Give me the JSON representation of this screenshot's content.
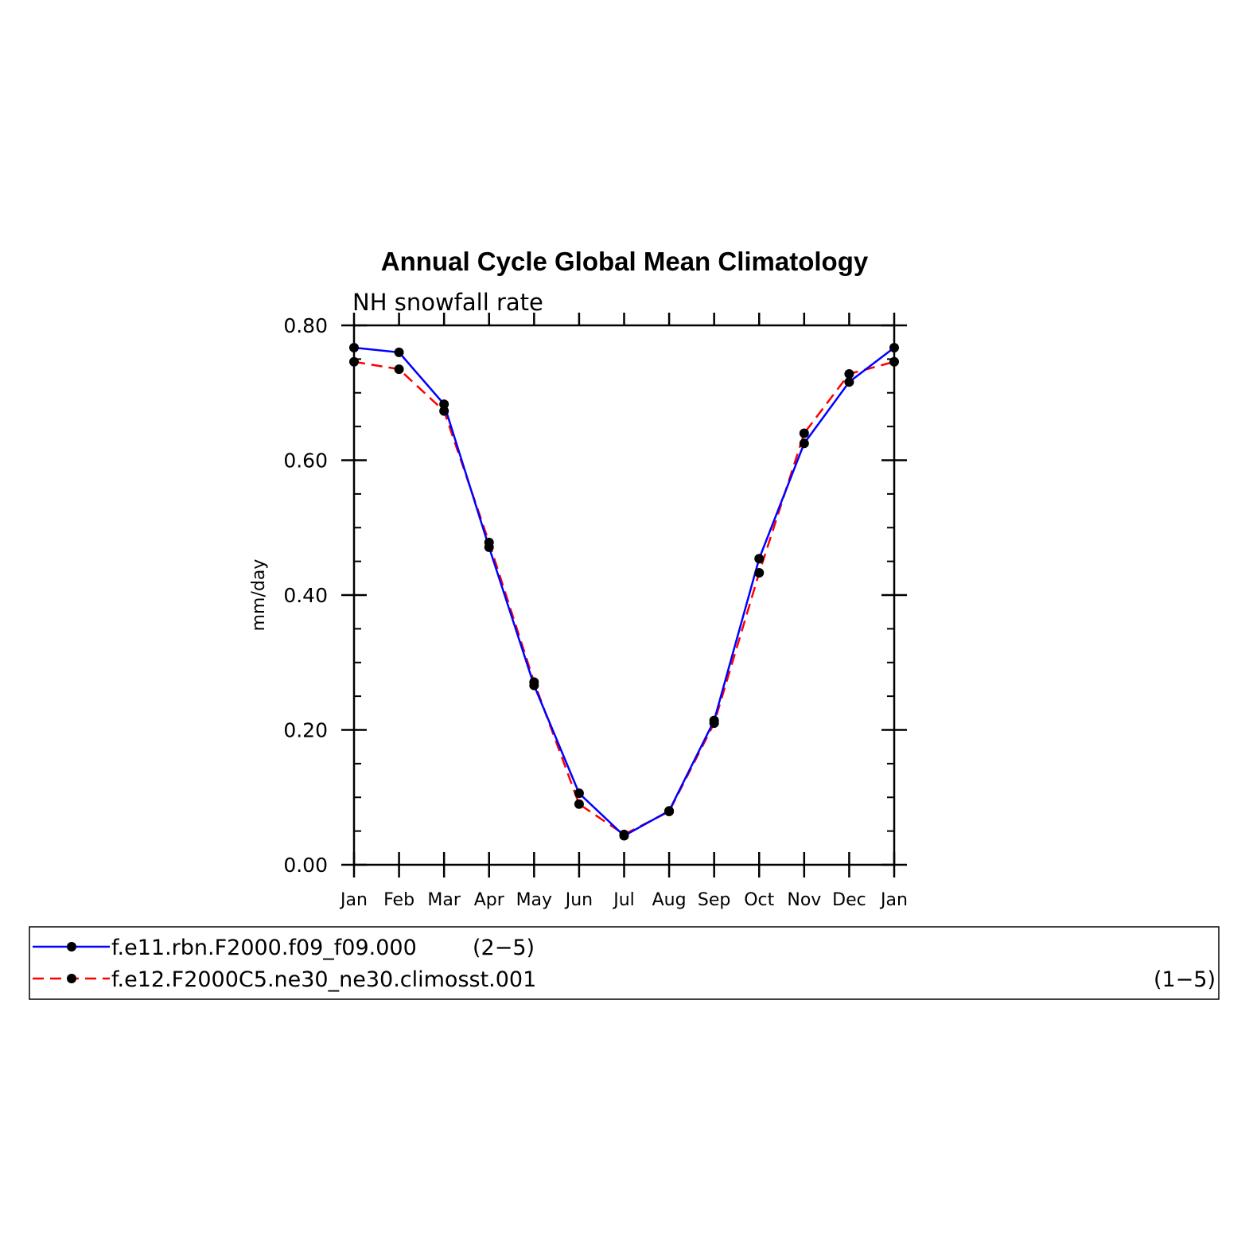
{
  "chart_data": {
    "type": "line",
    "title": "Annual Cycle Global Mean Climatology",
    "subtitle": "NH snowfall rate",
    "ylabel": "mm/day",
    "xlabel": "",
    "ylim": [
      0,
      0.8
    ],
    "yticks": [
      "0.00",
      "0.20",
      "0.40",
      "0.60",
      "0.80"
    ],
    "categories": [
      "Jan",
      "Feb",
      "Mar",
      "Apr",
      "May",
      "Jun",
      "Jul",
      "Aug",
      "Sep",
      "Oct",
      "Nov",
      "Dec",
      "Jan"
    ],
    "series": [
      {
        "name": "f.e11.rbn.F2000.f09_f09.000",
        "legend_note": "(2−5)",
        "color": "#0000ff",
        "dash": "solid",
        "values": [
          0.767,
          0.76,
          0.683,
          0.471,
          0.266,
          0.106,
          0.043,
          0.08,
          0.214,
          0.454,
          0.625,
          0.716,
          0.767
        ]
      },
      {
        "name": "f.e12.F2000C5.ne30_ne30.climosst.001",
        "legend_note": "(1−5)",
        "color": "#ff0000",
        "dash": "dashed",
        "values": [
          0.746,
          0.735,
          0.673,
          0.478,
          0.271,
          0.09,
          0.045,
          0.079,
          0.21,
          0.433,
          0.64,
          0.728,
          0.746
        ]
      }
    ],
    "grid": false,
    "legend_position": "bottom"
  }
}
